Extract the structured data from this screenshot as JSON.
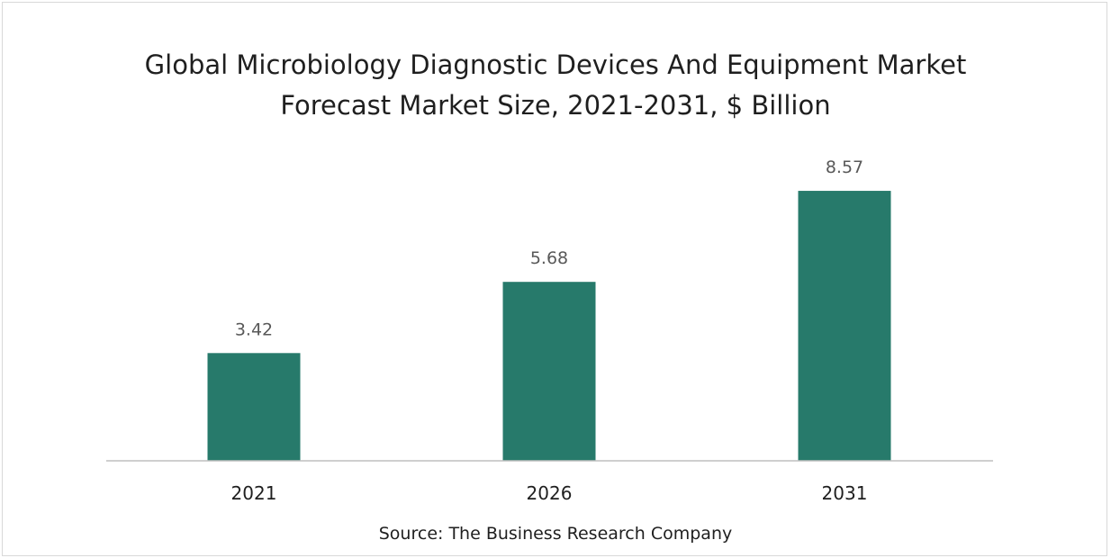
{
  "chart_data": {
    "type": "bar",
    "title_line1": "Global Microbiology Diagnostic Devices And Equipment Market",
    "title_line2": "Forecast Market Size, 2021-2031, $ Billion",
    "categories": [
      "2021",
      "2026",
      "2031"
    ],
    "values": [
      3.42,
      5.68,
      8.57
    ],
    "data_labels": [
      "3.42",
      "5.68",
      "8.57"
    ],
    "xlabel": "",
    "ylabel": "",
    "ylim": [
      0,
      10
    ],
    "grid": false,
    "legend": "none",
    "bar_color": "#277a6b",
    "axis_color": "#bfbfbf",
    "label_color": "#595959"
  },
  "source": "Source: The Business Research Company"
}
